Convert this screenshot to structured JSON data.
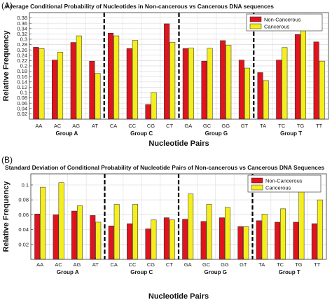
{
  "colors": {
    "non_cancerous": "#e0141e",
    "cancerous": "#f5ee1d",
    "grid": "#dcdcdc",
    "separator": "#000000"
  },
  "chart_data": [
    {
      "panel_label": "(A)",
      "type": "bar",
      "title": "Average Conditional Probability of Nucleotides in Non-cancerous vs Cancerous DNA sequences",
      "xlabel": "Nucleotide Pairs",
      "ylabel": "Relative Frequency",
      "ylim": [
        0,
        0.4
      ],
      "yticks": [
        "0.02",
        "0.04",
        "0.06",
        "0.08",
        "0.1",
        "0.12",
        "0.14",
        "0.16",
        "0.18",
        "0.2",
        "0.22",
        "0.24",
        "0.26",
        "0.28",
        "0.3",
        "0.32",
        "0.34",
        "0.36",
        "0.38"
      ],
      "grid": true,
      "legend_position": "top-right",
      "categories": [
        "AA",
        "AC",
        "AG",
        "AT",
        "CA",
        "CC",
        "CG",
        "CT",
        "GA",
        "GC",
        "GG",
        "GT",
        "TA",
        "TC",
        "TG",
        "TT"
      ],
      "groups": [
        "Group A",
        "Group C",
        "Group G",
        "Group T"
      ],
      "series": [
        {
          "name": "Non-Cancerous",
          "values": [
            0.27,
            0.222,
            0.288,
            0.218,
            0.323,
            0.265,
            0.055,
            0.358,
            0.265,
            0.218,
            0.295,
            0.222,
            0.175,
            0.222,
            0.318,
            0.29
          ]
        },
        {
          "name": "Cancerous",
          "values": [
            0.265,
            0.252,
            0.313,
            0.172,
            0.313,
            0.296,
            0.1,
            0.289,
            0.267,
            0.266,
            0.278,
            0.192,
            0.145,
            0.269,
            0.367,
            0.218
          ]
        }
      ]
    },
    {
      "panel_label": "(B)",
      "type": "bar",
      "title": "Standard Deviation of Conditional Probability of Nucleotide Pairs of Non-cancerous vs Cancerous DNA Sequences",
      "xlabel": "Nucleotide Pairs",
      "ylabel": "Relative Frequency",
      "ylim": [
        0,
        0.115
      ],
      "yticks": [
        "0.02",
        "0.04",
        "0.06",
        "0.08",
        "0.1"
      ],
      "grid": true,
      "legend_position": "top-right",
      "categories": [
        "AA",
        "AC",
        "AG",
        "AT",
        "CA",
        "CC",
        "CG",
        "CT",
        "GA",
        "GC",
        "GG",
        "GT",
        "TA",
        "TC",
        "TG",
        "TT"
      ],
      "groups": [
        "Group A",
        "Group C",
        "Group G",
        "Group T"
      ],
      "series": [
        {
          "name": "Non-Cancerous",
          "values": [
            0.061,
            0.06,
            0.065,
            0.059,
            0.045,
            0.048,
            0.041,
            0.056,
            0.054,
            0.051,
            0.056,
            0.044,
            0.052,
            0.05,
            0.05,
            0.048
          ]
        },
        {
          "name": "Cancerous",
          "values": [
            0.097,
            0.103,
            0.072,
            0.05,
            0.074,
            0.074,
            0.053,
            0.053,
            0.088,
            0.074,
            0.07,
            0.044,
            0.061,
            0.068,
            0.095,
            0.08
          ]
        }
      ]
    }
  ]
}
